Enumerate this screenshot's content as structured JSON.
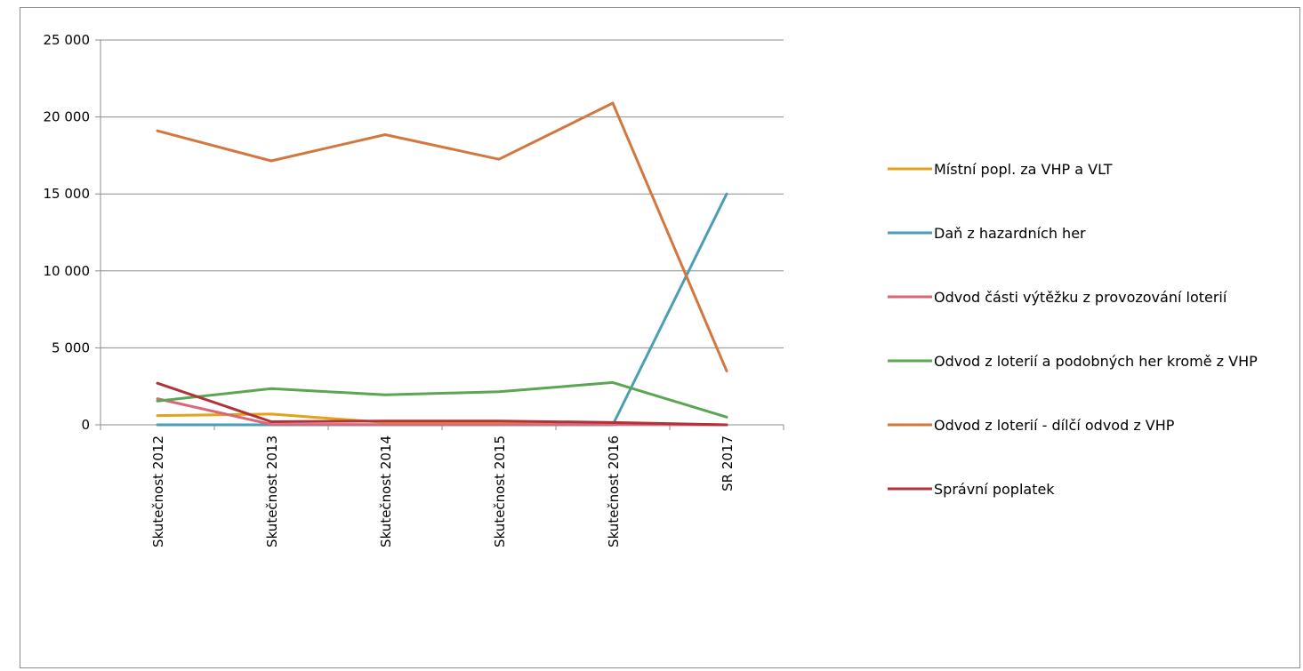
{
  "chart_data": {
    "type": "line",
    "categories": [
      "Skutečnost 2012",
      "Skutečnost 2013",
      "Skutečnost 2014",
      "Skutečnost 2015",
      "Skutečnost 2016",
      "SR 2017"
    ],
    "ylim": [
      0,
      25000
    ],
    "yticks": [
      0,
      5000,
      10000,
      15000,
      20000,
      25000
    ],
    "ytick_labels": [
      "0",
      "5 000",
      "10 000",
      "15 000",
      "20 000",
      "25 000"
    ],
    "grid": true,
    "legend_position": "right",
    "series": [
      {
        "name": "Místní popl. za VHP a VLT",
        "color": "#e3a21a",
        "values": [
          600,
          700,
          150,
          100,
          80,
          0
        ]
      },
      {
        "name": "Daň z hazardních her",
        "color": "#4b9eb4",
        "values": [
          0,
          0,
          0,
          0,
          0,
          15000
        ]
      },
      {
        "name": "Odvod části výtěžku z provozování loterií",
        "color": "#d9667a",
        "values": [
          1700,
          30,
          20,
          20,
          20,
          0
        ]
      },
      {
        "name": "Odvod z loterií a podobných her kromě z VHP",
        "color": "#5ba553",
        "values": [
          1550,
          2350,
          1950,
          2150,
          2750,
          500
        ]
      },
      {
        "name": "Odvod z loterií - dílčí odvod z VHP",
        "color": "#d2773e",
        "values": [
          19100,
          17150,
          18850,
          17250,
          20900,
          3500
        ]
      },
      {
        "name": "Správní poplatek",
        "color": "#b13238",
        "values": [
          2700,
          200,
          250,
          250,
          150,
          0
        ]
      }
    ]
  }
}
